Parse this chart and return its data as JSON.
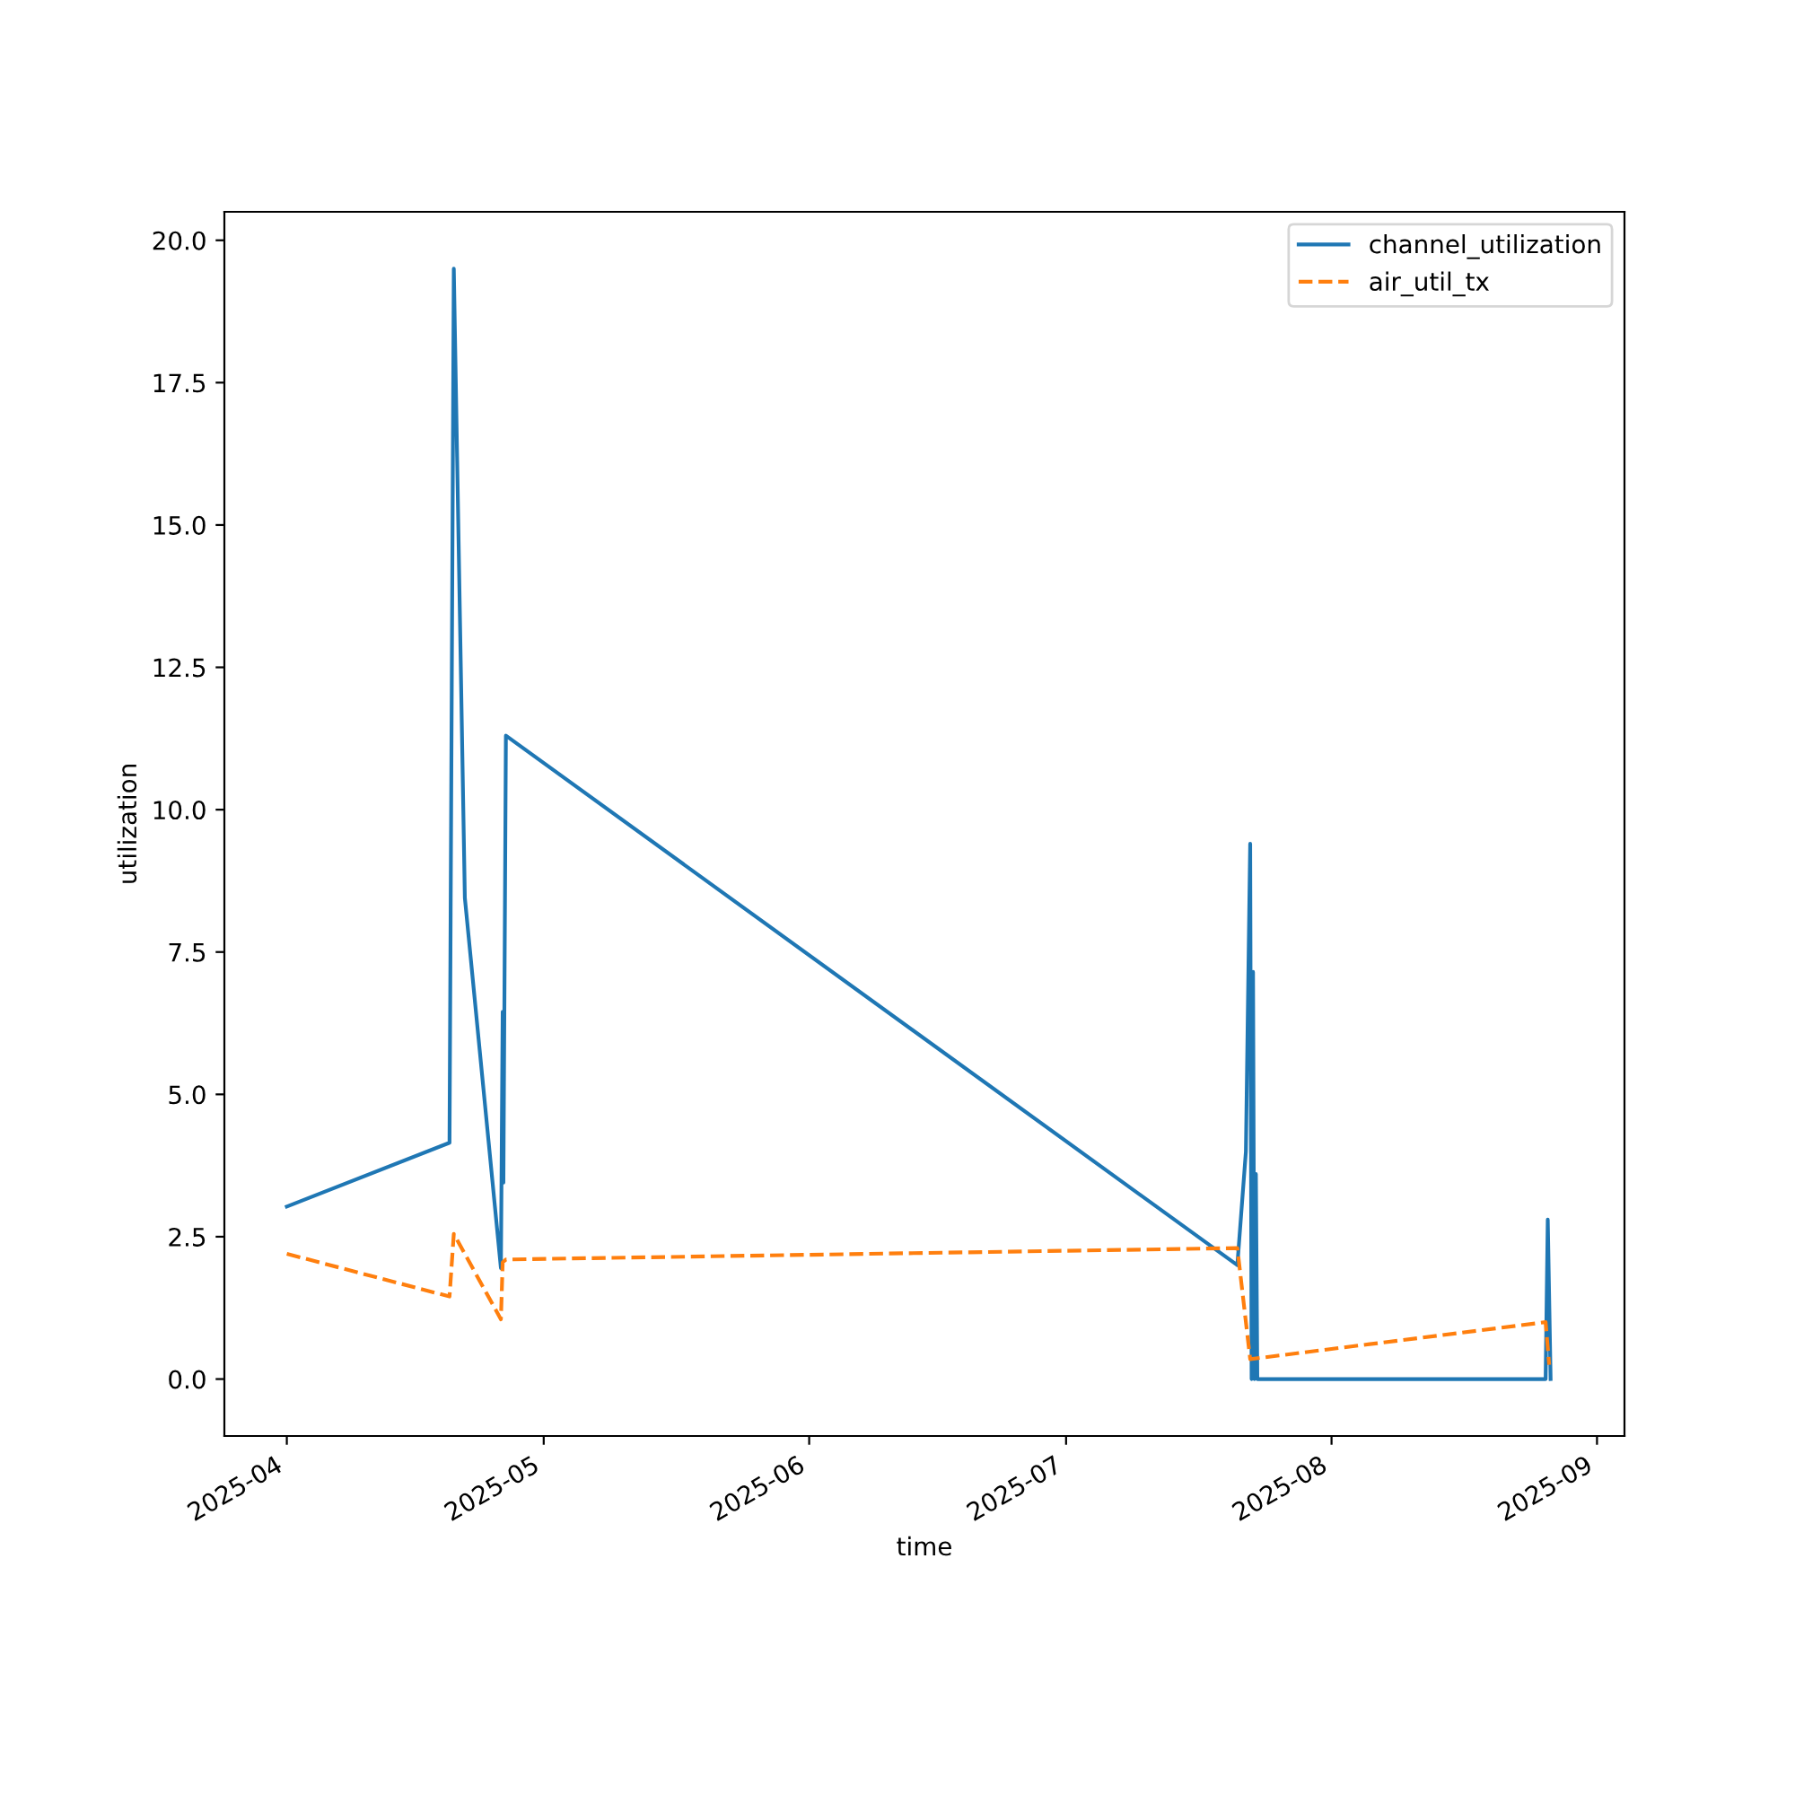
{
  "chart_data": {
    "type": "line",
    "xlabel": "time",
    "ylabel": "utilization",
    "legend": "top right",
    "grid": false,
    "xlim": [
      "2025-03-24T17:00",
      "2025-09-04T05:00"
    ],
    "ylim": [
      -1.0,
      20.5
    ],
    "xticks": [
      {
        "value": "2025-04-01",
        "label": "2025-04"
      },
      {
        "value": "2025-05-01",
        "label": "2025-05"
      },
      {
        "value": "2025-06-01",
        "label": "2025-06"
      },
      {
        "value": "2025-07-01",
        "label": "2025-07"
      },
      {
        "value": "2025-08-01",
        "label": "2025-08"
      },
      {
        "value": "2025-09-01",
        "label": "2025-09"
      }
    ],
    "yticks": [
      {
        "value": 0,
        "label": "0.0"
      },
      {
        "value": 2.5,
        "label": "2.5"
      },
      {
        "value": 5,
        "label": "5.0"
      },
      {
        "value": 7.5,
        "label": "7.5"
      },
      {
        "value": 10,
        "label": "10.0"
      },
      {
        "value": 12.5,
        "label": "12.5"
      },
      {
        "value": 15,
        "label": "15.0"
      },
      {
        "value": 17.5,
        "label": "17.5"
      },
      {
        "value": 20,
        "label": "20.0"
      }
    ],
    "series": [
      {
        "name": "channel_utilization",
        "color": "#1f77b4",
        "line_style": "solid",
        "x": [
          "2025-04-01T00:00",
          "2025-04-20T00:00",
          "2025-04-20T12:00",
          "2025-04-21T19:00",
          "2025-04-26T00:00",
          "2025-04-26T05:00",
          "2025-04-26T07:00",
          "2025-04-26T14:00",
          "2025-07-21T00:00",
          "2025-07-22T00:00",
          "2025-07-22T12:00",
          "2025-07-22T16:00",
          "2025-07-22T20:00",
          "2025-07-23T00:00",
          "2025-07-23T04:00",
          "2025-07-23T08:00",
          "2025-08-26T00:00",
          "2025-08-26T06:00",
          "2025-08-26T14:00"
        ],
        "values": [
          3.03,
          4.15,
          19.5,
          8.45,
          1.95,
          6.45,
          3.45,
          11.3,
          2.0,
          4.0,
          9.4,
          0.0,
          7.15,
          0.0,
          3.6,
          0.0,
          0.0,
          2.8,
          0.0
        ]
      },
      {
        "name": "air_util_tx",
        "color": "#ff7f0e",
        "line_style": "dashed",
        "x": [
          "2025-04-01T00:00",
          "2025-04-20T00:00",
          "2025-04-20T12:00",
          "2025-04-26T00:00",
          "2025-04-26T05:00",
          "2025-04-26T14:00",
          "2025-07-21T00:00",
          "2025-07-22T12:00",
          "2025-08-26T00:00",
          "2025-08-26T10:00"
        ],
        "values": [
          2.2,
          1.45,
          2.55,
          1.05,
          2.05,
          2.1,
          2.3,
          0.35,
          1.0,
          0.25
        ]
      }
    ]
  }
}
